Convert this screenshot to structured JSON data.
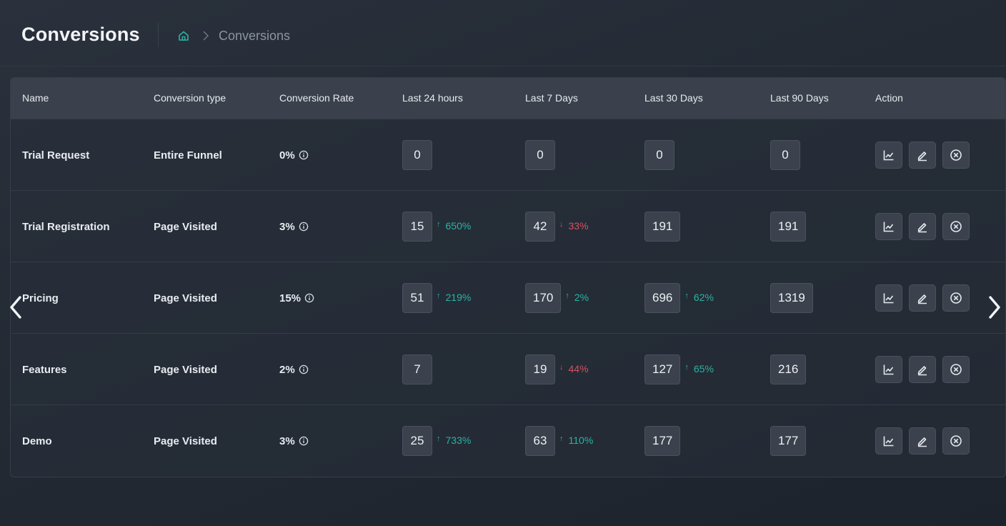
{
  "header": {
    "title": "Conversions",
    "breadcrumb": {
      "home_icon": "home-icon",
      "separator_icon": "chevron-right-icon",
      "current": "Conversions"
    }
  },
  "table": {
    "columns": [
      "Name",
      "Conversion type",
      "Conversion Rate",
      "Last 24 hours",
      "Last 7 Days",
      "Last 30 Days",
      "Last 90 Days",
      "Action"
    ],
    "rows": [
      {
        "name": "Trial Request",
        "type": "Entire Funnel",
        "rate": "0%",
        "d24": {
          "value": "0",
          "delta": "",
          "dir": ""
        },
        "d7": {
          "value": "0",
          "delta": "",
          "dir": ""
        },
        "d30": {
          "value": "0",
          "delta": "",
          "dir": ""
        },
        "d90": {
          "value": "0"
        }
      },
      {
        "name": "Trial Registration",
        "type": "Page Visited",
        "rate": "3%",
        "d24": {
          "value": "15",
          "delta": "650%",
          "dir": "up"
        },
        "d7": {
          "value": "42",
          "delta": "33%",
          "dir": "down"
        },
        "d30": {
          "value": "191",
          "delta": "",
          "dir": ""
        },
        "d90": {
          "value": "191"
        }
      },
      {
        "name": "Pricing",
        "type": "Page Visited",
        "rate": "15%",
        "d24": {
          "value": "51",
          "delta": "219%",
          "dir": "up"
        },
        "d7": {
          "value": "170",
          "delta": "2%",
          "dir": "up"
        },
        "d30": {
          "value": "696",
          "delta": "62%",
          "dir": "up"
        },
        "d90": {
          "value": "1319"
        }
      },
      {
        "name": "Features",
        "type": "Page Visited",
        "rate": "2%",
        "d24": {
          "value": "7",
          "delta": "",
          "dir": ""
        },
        "d7": {
          "value": "19",
          "delta": "44%",
          "dir": "down"
        },
        "d30": {
          "value": "127",
          "delta": "65%",
          "dir": "up"
        },
        "d90": {
          "value": "216"
        }
      },
      {
        "name": "Demo",
        "type": "Page Visited",
        "rate": "3%",
        "d24": {
          "value": "25",
          "delta": "733%",
          "dir": "up"
        },
        "d7": {
          "value": "63",
          "delta": "110%",
          "dir": "up"
        },
        "d30": {
          "value": "177",
          "delta": "",
          "dir": ""
        },
        "d90": {
          "value": "177"
        }
      }
    ],
    "action_icons": [
      "chart-icon",
      "edit-icon",
      "delete-icon"
    ]
  },
  "navigation": {
    "prev_icon": "chevron-left-icon",
    "next_icon": "chevron-right-icon"
  },
  "colors": {
    "accent": "#2bb3a3",
    "negative": "#d4525e",
    "header_bg": "#3a414c",
    "box_bg": "#3b424d"
  }
}
